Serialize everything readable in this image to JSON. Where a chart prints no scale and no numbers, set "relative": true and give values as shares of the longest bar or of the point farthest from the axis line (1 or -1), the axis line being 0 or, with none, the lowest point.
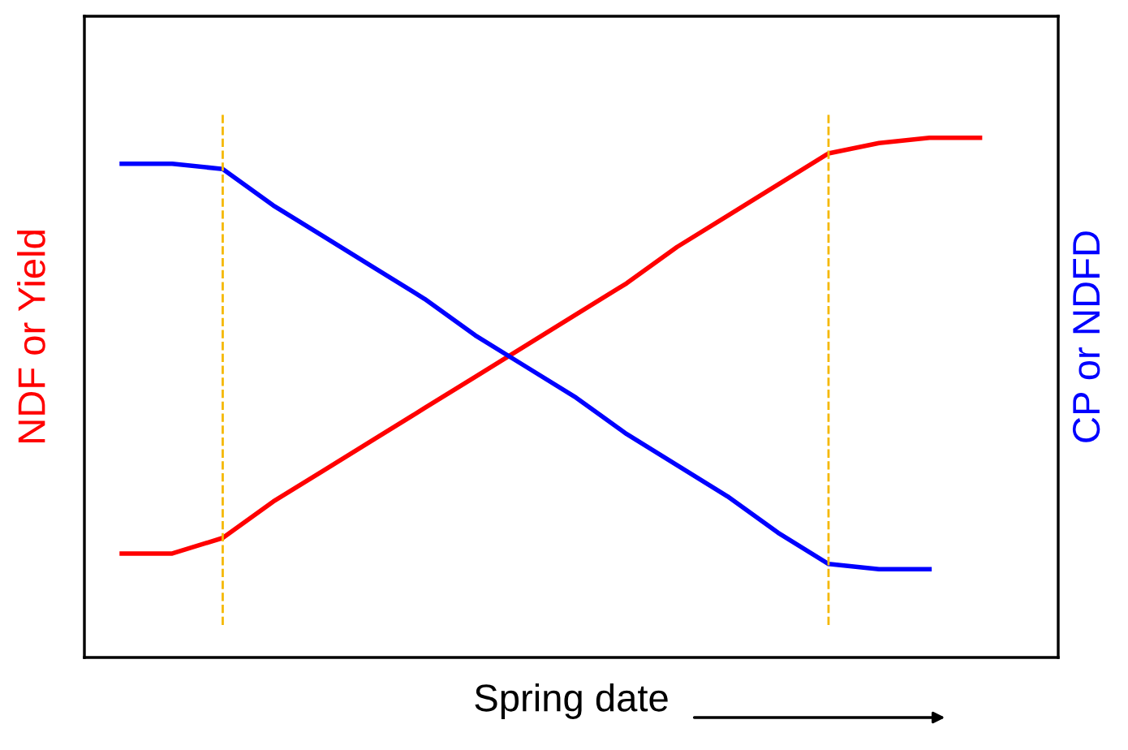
{
  "chart_data": {
    "type": "line",
    "relative": true,
    "xlabel": "Spring date",
    "ylabel": "NDF or Yield",
    "y2label": "CP or NDFD",
    "categories": [
      null,
      null,
      null,
      null,
      null,
      null,
      null,
      null,
      null,
      null,
      null,
      null,
      null,
      null,
      null,
      null,
      null,
      null
    ],
    "series": [
      {
        "color": "#ff0000",
        "values": [
          0.2,
          0.2,
          0.23,
          0.3,
          0.36,
          0.42,
          0.48,
          0.54,
          0.6,
          0.66,
          0.72,
          0.79,
          0.85,
          0.91,
          0.97,
          0.99,
          1.0,
          1.0
        ]
      },
      {
        "color": "#0000ff",
        "values": [
          0.95,
          0.95,
          0.94,
          0.87,
          0.81,
          0.75,
          0.69,
          0.62,
          0.56,
          0.5,
          0.43,
          0.37,
          0.31,
          0.24,
          0.18,
          0.17,
          0.17,
          null
        ]
      }
    ],
    "marker": "none",
    "line_style": "solid",
    "grid": false,
    "legend": false
  }
}
